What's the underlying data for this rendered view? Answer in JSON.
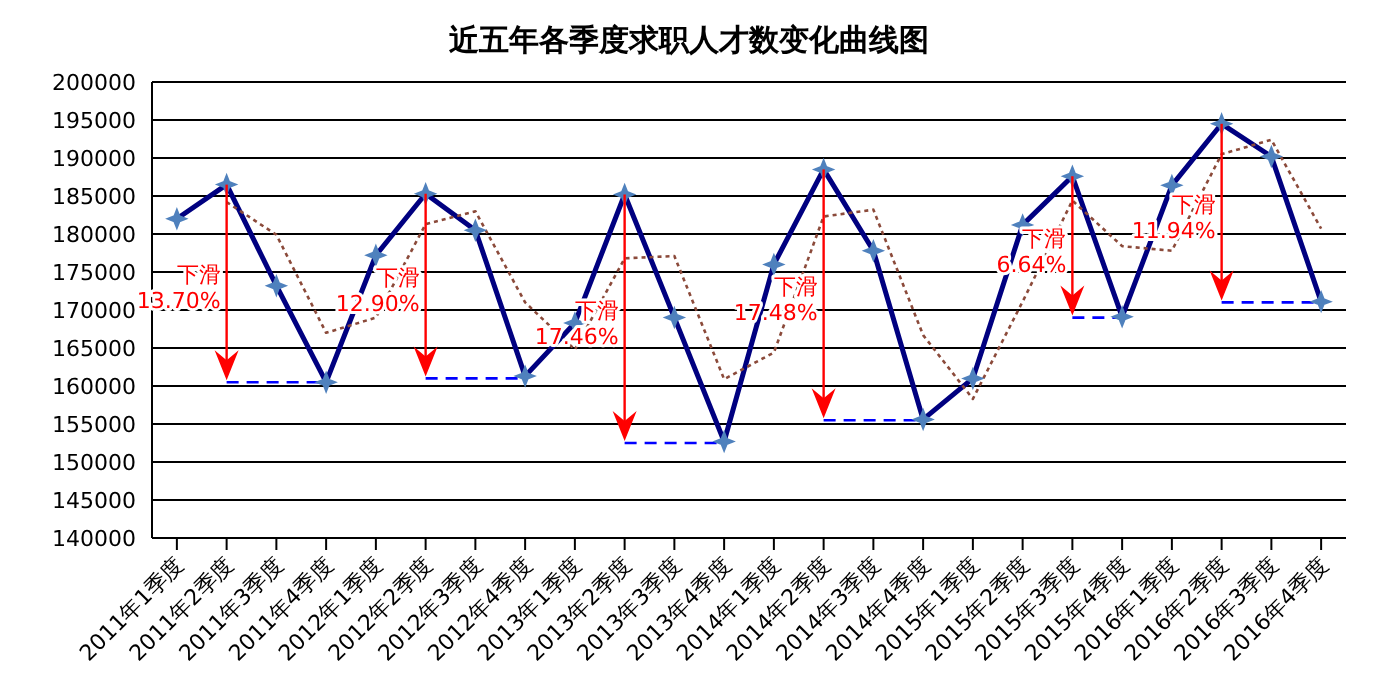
{
  "chart_data": {
    "type": "line",
    "title": "近五年各季度求职人才数变化曲线图",
    "categories": [
      "2011年1季度",
      "2011年2季度",
      "2011年3季度",
      "2011年4季度",
      "2012年1季度",
      "2012年2季度",
      "2012年3季度",
      "2012年4季度",
      "2013年1季度",
      "2013年2季度",
      "2013年3季度",
      "2013年4季度",
      "2014年1季度",
      "2014年2季度",
      "2014年3季度",
      "2014年4季度",
      "2015年1季度",
      "2015年2季度",
      "2015年3季度",
      "2015年4季度",
      "2016年1季度",
      "2016年2季度",
      "2016年3季度",
      "2016年4季度"
    ],
    "series": [
      {
        "color": "#000080",
        "marker": "star",
        "line_style": "solid",
        "values": [
          182000,
          186500,
          173200,
          160500,
          177200,
          185300,
          180500,
          161300,
          168300,
          185200,
          169000,
          152700,
          176000,
          188500,
          177800,
          155600,
          161000,
          181200,
          187600,
          169100,
          186400,
          194500,
          190200,
          171100
        ]
      },
      {
        "color": "#8b4a3a",
        "marker": "none",
        "line_style": "dotted",
        "values": [
          null,
          184200,
          179900,
          167000,
          169000,
          181300,
          183000,
          171000,
          164800,
          176800,
          177100,
          160900,
          164400,
          182300,
          183200,
          166700,
          158300,
          171100,
          184400,
          178400,
          177800,
          190500,
          192400,
          180700
        ]
      },
      {
        "color": "#0000ff",
        "marker": "none",
        "line_style": "dashed",
        "values": [
          null,
          160500,
          160500,
          160500,
          null,
          null,
          null,
          null,
          null,
          null,
          null,
          null,
          null,
          null,
          null,
          null,
          null,
          null,
          null,
          null,
          null,
          null,
          null,
          null
        ]
      },
      {
        "color": "#0000ff",
        "marker": "none",
        "line_style": "dashed",
        "values": [
          null,
          null,
          null,
          null,
          null,
          161000,
          161000,
          161000,
          null,
          null,
          null,
          null,
          null,
          null,
          null,
          null,
          null,
          null,
          null,
          null,
          null,
          null,
          null,
          null
        ]
      },
      {
        "color": "#0000ff",
        "marker": "none",
        "line_style": "dashed",
        "values": [
          null,
          null,
          null,
          null,
          null,
          null,
          null,
          null,
          null,
          152500,
          152500,
          152500,
          null,
          null,
          null,
          null,
          null,
          null,
          null,
          null,
          null,
          null,
          null,
          null
        ]
      },
      {
        "color": "#0000ff",
        "marker": "none",
        "line_style": "dashed",
        "values": [
          null,
          null,
          null,
          null,
          null,
          null,
          null,
          null,
          null,
          null,
          null,
          null,
          null,
          155500,
          155500,
          155500,
          null,
          null,
          null,
          null,
          null,
          null,
          null,
          null
        ]
      },
      {
        "color": "#0000ff",
        "marker": "none",
        "line_style": "dashed",
        "values": [
          null,
          null,
          null,
          null,
          null,
          null,
          null,
          null,
          null,
          null,
          null,
          null,
          null,
          null,
          null,
          null,
          null,
          null,
          169000,
          169000,
          null,
          null,
          null,
          null
        ]
      },
      {
        "color": "#0000ff",
        "marker": "none",
        "line_style": "dashed",
        "values": [
          null,
          null,
          null,
          null,
          null,
          null,
          null,
          null,
          null,
          null,
          null,
          null,
          null,
          null,
          null,
          null,
          null,
          null,
          null,
          null,
          null,
          171000,
          171000,
          171000
        ]
      }
    ],
    "annotations": [
      "下滑\n13.70%",
      "下滑\n12.90%",
      "下滑\n17.46%",
      "下滑\n17.48%",
      "下滑\n6.64%",
      "下滑\n11.94%"
    ],
    "ylim": [
      140000,
      200000
    ],
    "yticks": [
      140000,
      145000,
      150000,
      155000,
      160000,
      165000,
      170000,
      175000,
      180000,
      185000,
      190000,
      195000,
      200000
    ],
    "grid": "y",
    "legend": false
  }
}
